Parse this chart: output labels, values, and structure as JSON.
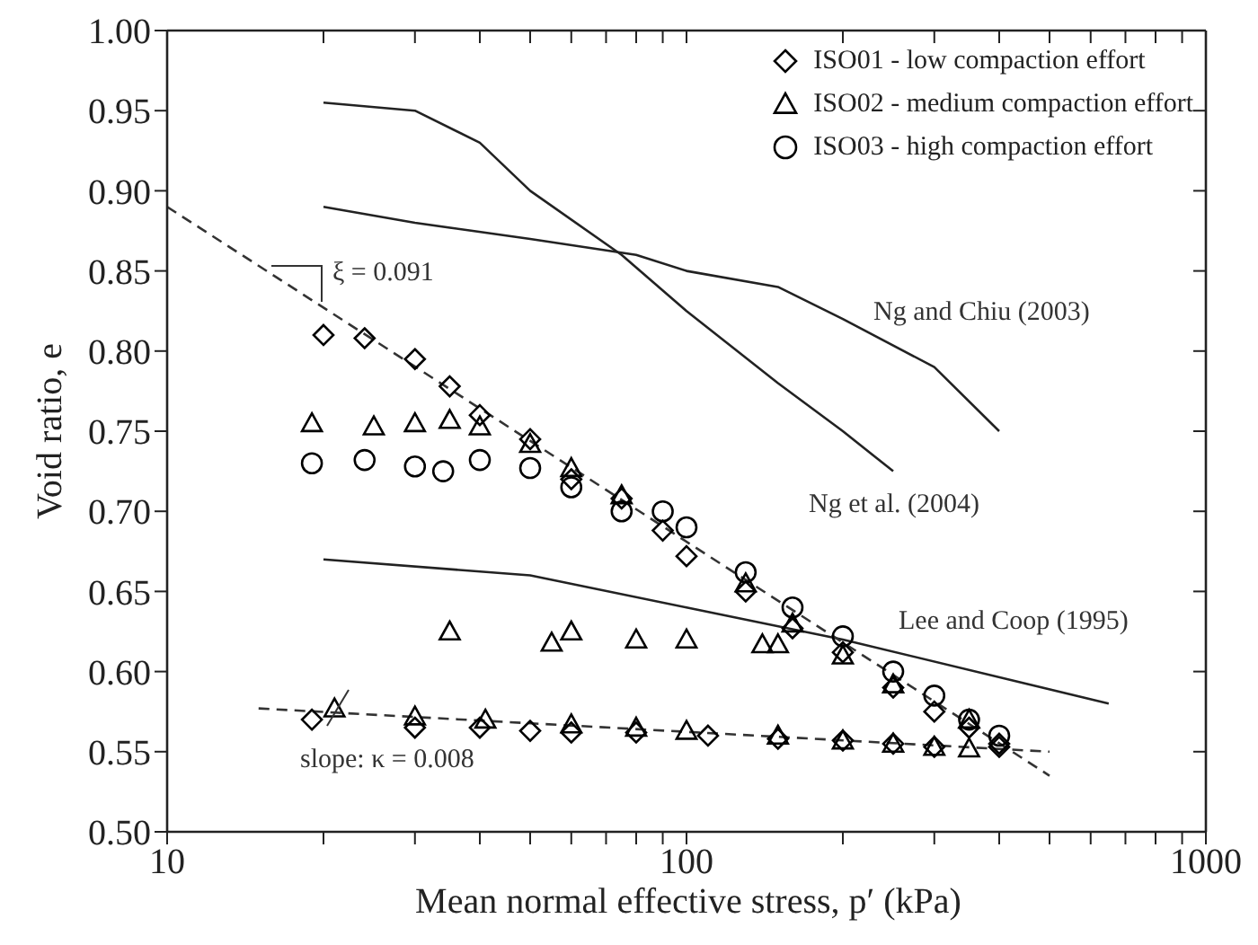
{
  "chart_data": {
    "type": "scatter",
    "xlabel": "Mean normal effective stress, p′ (kPa)",
    "ylabel": "Void ratio, e",
    "log": "x",
    "grid": false,
    "legend": "top right",
    "xlim": [
      10,
      1000
    ],
    "ylim": [
      0.5,
      1.0
    ],
    "xticks": [
      10,
      {
        "value": 20,
        "label": null
      },
      {
        "value": 30,
        "label": null
      },
      {
        "value": 40,
        "label": null
      },
      {
        "value": 50,
        "label": null
      },
      {
        "value": 60,
        "label": null
      },
      {
        "value": 70,
        "label": null
      },
      {
        "value": 80,
        "label": null
      },
      {
        "value": 90,
        "label": null
      },
      100,
      {
        "value": 200,
        "label": null
      },
      {
        "value": 300,
        "label": null
      },
      {
        "value": 400,
        "label": null
      },
      {
        "value": 500,
        "label": null
      },
      {
        "value": 600,
        "label": null
      },
      {
        "value": 700,
        "label": null
      },
      {
        "value": 800,
        "label": null
      },
      {
        "value": 900,
        "label": null
      },
      1000
    ],
    "yticks": [
      {
        "value": 0.5,
        "label": "0.50"
      },
      {
        "value": 0.55,
        "label": "0.55"
      },
      {
        "value": 0.6,
        "label": "0.60"
      },
      {
        "value": 0.65,
        "label": "0.65"
      },
      {
        "value": 0.7,
        "label": "0.70"
      },
      {
        "value": 0.75,
        "label": "0.75"
      },
      {
        "value": 0.8,
        "label": "0.80"
      },
      {
        "value": 0.85,
        "label": "0.85"
      },
      {
        "value": 0.9,
        "label": "0.90"
      },
      {
        "value": 0.95,
        "label": "0.95"
      },
      {
        "value": 1.0,
        "label": "1.00"
      }
    ],
    "series": [
      {
        "name": "ISO01 - low compaction effort",
        "marker": "diamond",
        "color": "#000000",
        "x": [
          20,
          24,
          30,
          35,
          40,
          50,
          60,
          75,
          90,
          100,
          130,
          160,
          200,
          250,
          300,
          350,
          400,
          19,
          30,
          40,
          50,
          60,
          80,
          110,
          150,
          200,
          250,
          300,
          400
        ],
        "values": [
          0.81,
          0.808,
          0.795,
          0.778,
          0.76,
          0.745,
          0.72,
          0.708,
          0.688,
          0.672,
          0.65,
          0.627,
          0.612,
          0.59,
          0.575,
          0.565,
          0.555,
          0.57,
          0.565,
          0.565,
          0.563,
          0.562,
          0.562,
          0.56,
          0.558,
          0.557,
          0.555,
          0.553,
          0.553
        ]
      },
      {
        "name": "ISO02 - medium compaction effort",
        "marker": "triangle",
        "color": "#000000",
        "x": [
          19,
          25,
          30,
          35,
          40,
          50,
          60,
          75,
          130,
          160,
          250,
          350,
          35,
          55,
          60,
          80,
          100,
          140,
          150,
          200,
          21,
          30,
          41,
          60,
          80,
          100,
          150,
          200,
          250,
          300,
          350
        ],
        "values": [
          0.755,
          0.753,
          0.755,
          0.757,
          0.753,
          0.742,
          0.727,
          0.71,
          0.655,
          0.63,
          0.592,
          0.57,
          0.625,
          0.618,
          0.625,
          0.62,
          0.62,
          0.617,
          0.617,
          0.61,
          0.577,
          0.572,
          0.57,
          0.567,
          0.565,
          0.563,
          0.56,
          0.557,
          0.555,
          0.553,
          0.552
        ]
      },
      {
        "name": "ISO03 - high compaction effort",
        "marker": "circle",
        "color": "#000000",
        "x": [
          19,
          24,
          30,
          34,
          40,
          50,
          60,
          75,
          90,
          100,
          130,
          160,
          200,
          250,
          300,
          350,
          400
        ],
        "values": [
          0.73,
          0.732,
          0.728,
          0.725,
          0.732,
          0.727,
          0.715,
          0.7,
          0.7,
          0.69,
          0.662,
          0.64,
          0.622,
          0.6,
          0.585,
          0.57,
          0.56
        ]
      },
      {
        "type": "line",
        "marker": "none",
        "line_style": "solid",
        "color": "#222222",
        "x": [
          20,
          30,
          50,
          80,
          100,
          150,
          200,
          300,
          400
        ],
        "values": [
          0.89,
          0.88,
          0.87,
          0.86,
          0.85,
          0.84,
          0.82,
          0.79,
          0.75
        ]
      },
      {
        "type": "line",
        "marker": "none",
        "line_style": "solid",
        "color": "#222222",
        "x": [
          20,
          30,
          40,
          50,
          75,
          100,
          150,
          200,
          250
        ],
        "values": [
          0.955,
          0.95,
          0.93,
          0.9,
          0.86,
          0.825,
          0.78,
          0.75,
          0.725
        ]
      },
      {
        "type": "line",
        "marker": "none",
        "line_style": "solid",
        "color": "#222222",
        "x": [
          20,
          50,
          100,
          200,
          650
        ],
        "values": [
          0.67,
          0.66,
          0.64,
          0.62,
          0.58
        ]
      },
      {
        "type": "line",
        "marker": "none",
        "line_style": "dashed",
        "color": "#333333",
        "x": [
          10,
          500
        ],
        "values": [
          0.89,
          0.535
        ]
      },
      {
        "type": "line",
        "marker": "none",
        "line_style": "dashed",
        "color": "#333333",
        "x": [
          15,
          500
        ],
        "values": [
          0.577,
          0.55
        ]
      }
    ],
    "annotations": [
      "ξ = 0.091",
      "slope: κ = 0.008",
      "Ng and Chiu (2003)",
      "Ng et al. (2004)",
      "Lee and Coop (1995)"
    ]
  }
}
